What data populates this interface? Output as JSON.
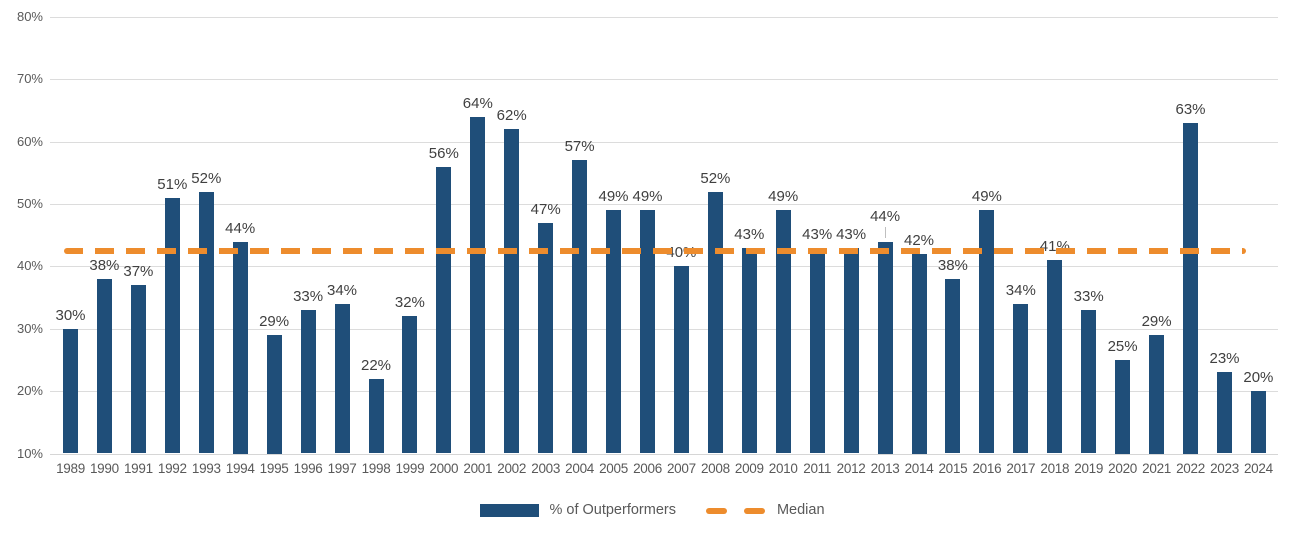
{
  "chart_data": {
    "type": "bar",
    "title": "",
    "xlabel": "",
    "ylabel": "",
    "categories": [
      "1989",
      "1990",
      "1991",
      "1992",
      "1993",
      "1994",
      "1995",
      "1996",
      "1997",
      "1998",
      "1999",
      "2000",
      "2001",
      "2002",
      "2003",
      "2004",
      "2005",
      "2006",
      "2007",
      "2008",
      "2009",
      "2010",
      "2011",
      "2012",
      "2013",
      "2014",
      "2015",
      "2016",
      "2017",
      "2018",
      "2019",
      "2020",
      "2021",
      "2022",
      "2023",
      "2024"
    ],
    "series": [
      {
        "name": "% of Outperformers",
        "kind": "bar",
        "color": "#1F4E79",
        "values": [
          30,
          38,
          37,
          51,
          52,
          44,
          29,
          33,
          34,
          22,
          32,
          56,
          64,
          62,
          47,
          57,
          49,
          49,
          40,
          52,
          43,
          49,
          43,
          43,
          44,
          42,
          38,
          49,
          34,
          41,
          33,
          25,
          29,
          63,
          23,
          20
        ],
        "data_labels": [
          "30%",
          "38%",
          "37%",
          "51%",
          "52%",
          "44%",
          "29%",
          "33%",
          "34%",
          "22%",
          "32%",
          "56%",
          "64%",
          "62%",
          "47%",
          "57%",
          "49%",
          "49%",
          "40%",
          "52%",
          "43%",
          "49%",
          "43%",
          "43%",
          "44%",
          "42%",
          "38%",
          "49%",
          "34%",
          "41%",
          "33%",
          "25%",
          "29%",
          "63%",
          "23%",
          "20%"
        ]
      },
      {
        "name": "Median",
        "kind": "dashed_line",
        "color": "#ED8C2D",
        "value": 42.5
      }
    ],
    "ylim": [
      10,
      80
    ],
    "yticks": [
      {
        "value": 10,
        "label": "10%"
      },
      {
        "value": 20,
        "label": "20%"
      },
      {
        "value": 30,
        "label": "30%"
      },
      {
        "value": 40,
        "label": "40%"
      },
      {
        "value": 50,
        "label": "50%"
      },
      {
        "value": 60,
        "label": "60%"
      },
      {
        "value": 70,
        "label": "70%"
      },
      {
        "value": 80,
        "label": "80%"
      }
    ],
    "grid": true,
    "legend_position": "bottom",
    "label_callout_category": "2013"
  },
  "legend": {
    "bar_label": "% of Outperformers",
    "median_label": "Median"
  }
}
